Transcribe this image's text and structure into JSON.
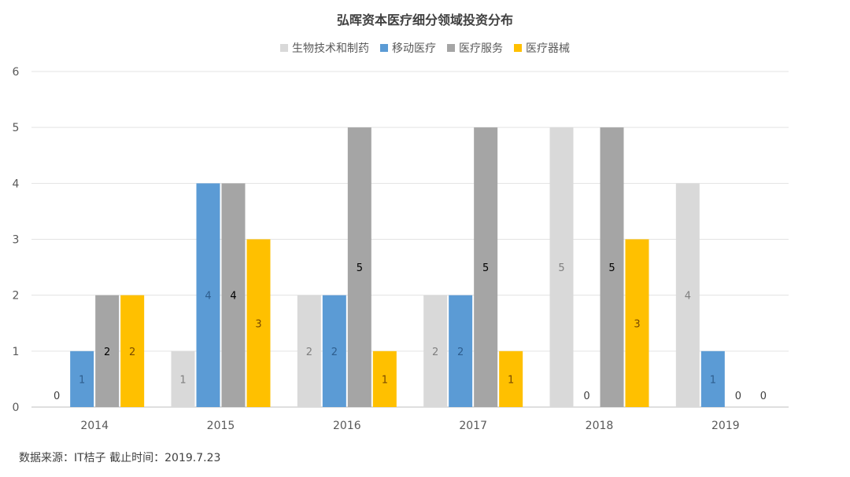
{
  "chart_data": {
    "type": "bar",
    "title": "弘晖资本医疗细分领域投资分布",
    "categories": [
      "2014",
      "2015",
      "2016",
      "2017",
      "2018",
      "2019"
    ],
    "series": [
      {
        "name": "生物技术和制药",
        "color": "#d9d9d9",
        "label_color": "#7f7f7f",
        "values": [
          0,
          1,
          2,
          2,
          5,
          4
        ]
      },
      {
        "name": "移动医疗",
        "color": "#5b9bd5",
        "label_color": "#2e5e8e",
        "values": [
          1,
          4,
          2,
          2,
          0,
          1
        ]
      },
      {
        "name": "医疗服务",
        "color": "#a5a5a5",
        "label_color": "#000000",
        "values": [
          2,
          4,
          5,
          5,
          5,
          0
        ]
      },
      {
        "name": "医疗器械",
        "color": "#ffc000",
        "label_color": "#7a4a00",
        "values": [
          2,
          3,
          1,
          1,
          3,
          0
        ]
      }
    ],
    "yticks": [
      "0",
      "1",
      "2",
      "3",
      "4",
      "5",
      "6"
    ],
    "ylim": [
      0,
      6
    ],
    "xlabel": "",
    "ylabel": "",
    "legend_position": "top-center",
    "grid": true
  },
  "footer": {
    "source": "数据来源：IT桔子  截止时间：2019.7.23"
  }
}
